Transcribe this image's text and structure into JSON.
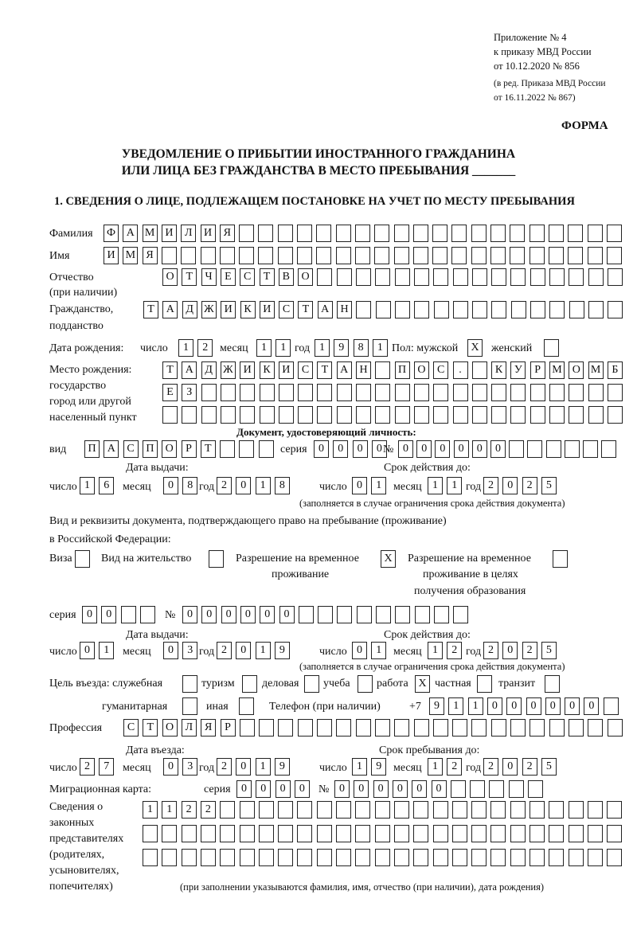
{
  "header": {
    "appendix": [
      "Приложение № 4",
      "к приказу МВД России",
      "от 10.12.2020 № 856"
    ],
    "revision": [
      "(в ред. Приказа МВД России",
      "от 16.11.2022 № 867)"
    ],
    "form_label": "ФОРМА",
    "title_line1": "УВЕДОМЛЕНИЕ О ПРИБЫТИИ ИНОСТРАННОГО ГРАЖДАНИНА",
    "title_line2": "ИЛИ ЛИЦА БЕЗ ГРАЖДАНСТВА В МЕСТО ПРЕБЫВАНИЯ _______",
    "section1": "1. СВЕДЕНИЯ О ЛИЦЕ, ПОДЛЕЖАЩЕМ ПОСТАНОВКЕ НА УЧЕТ ПО МЕСТУ ПРЕБЫВАНИЯ"
  },
  "person": {
    "surname": {
      "label": "Фамилия",
      "value": "ФАМИЛИЯ"
    },
    "name": {
      "label": "Имя",
      "value": "ИМЯ"
    },
    "patronymic": {
      "label1": "Отчество",
      "label2": "(при наличии)",
      "value": "ОТЧЕСТВО"
    },
    "citizenship": {
      "label1": "Гражданство,",
      "label2": "подданство",
      "value": "ТАДЖИКИСТАН"
    },
    "birth_date": {
      "label": "Дата рождения:",
      "day_label": "число",
      "day": "12",
      "month_label": "месяц",
      "month": "11",
      "year_label": "год",
      "year": "1981"
    },
    "sex": {
      "label": "Пол: мужской",
      "male": "X",
      "female_label": "женский",
      "female": ""
    },
    "birth_place": {
      "labels": [
        "Место рождения:",
        "государство",
        "город или другой",
        "населенный пункт"
      ],
      "rows": [
        "ТАДЖИКИСТАН ПОС. КУРМОМБ",
        "ЕЗ",
        ""
      ]
    }
  },
  "id_document": {
    "heading": "Документ, удостоверяющий личность:",
    "type_label": "вид",
    "type": "ПАСПОРТ",
    "series_label": "серия",
    "series": "0000",
    "number_label": "№",
    "number": "000000",
    "issue": {
      "heading": "Дата выдачи:",
      "day_label": "число",
      "day": "16",
      "month_label": "месяц",
      "month": "08",
      "year_label": "год",
      "year": "2018"
    },
    "valid": {
      "heading": "Срок действия до:",
      "day_label": "число",
      "day": "01",
      "month_label": "месяц",
      "month": "11",
      "year_label": "год",
      "year": "2025"
    },
    "note": "(заполняется в случае ограничения срока действия документа)"
  },
  "stay_document": {
    "heading1": "Вид и реквизиты документа, подтверждающего право на пребывание (проживание)",
    "heading2": "в Российской Федерации:",
    "visa_label": "Виза",
    "visa": "",
    "residence_label": "Вид на жительство",
    "residence": "",
    "temp_label1": "Разрешение на временное",
    "temp_label2": "проживание",
    "temp": "X",
    "edu_label1": "Разрешение на временное",
    "edu_label2": "проживание в целях",
    "edu_label3": "получения образования",
    "edu": "",
    "series_label": "серия",
    "series": "00",
    "number_label": "№",
    "number": "000000",
    "issue": {
      "heading": "Дата выдачи:",
      "day_label": "число",
      "day": "01",
      "month_label": "месяц",
      "month": "03",
      "year_label": "год",
      "year": "2019"
    },
    "valid": {
      "heading": "Срок действия до:",
      "day_label": "число",
      "day": "01",
      "month_label": "месяц",
      "month": "12",
      "year_label": "год",
      "year": "2025"
    },
    "note": "(заполняется в случае ограничения срока действия документа)"
  },
  "purpose": {
    "label": "Цель въезда: служебная",
    "official": "",
    "tourism_label": "туризм",
    "tourism": "",
    "business_label": "деловая",
    "business": "",
    "study_label": "учеба",
    "study": "",
    "work_label": "работа",
    "work": "X",
    "private_label": "частная",
    "private": "",
    "transit_label": "транзит",
    "transit": "",
    "humanitarian_label": "гуманитарная",
    "humanitarian": "",
    "other_label": "иная",
    "other": ""
  },
  "phone": {
    "label": "Телефон (при наличии)",
    "prefix": "+7",
    "value": "911000000"
  },
  "profession": {
    "label": "Профессия",
    "value": "СТОЛЯР"
  },
  "entry": {
    "heading": "Дата въезда:",
    "day_label": "число",
    "day": "27",
    "month_label": "месяц",
    "month": "03",
    "year_label": "год",
    "year": "2019"
  },
  "stay_until": {
    "heading": "Срок пребывания до:",
    "day_label": "число",
    "day": "19",
    "month_label": "месяц",
    "month": "12",
    "year_label": "год",
    "year": "2025"
  },
  "migration_card": {
    "label": "Миграционная карта:",
    "series_label": "серия",
    "series": "0000",
    "number_label": "№",
    "number": "000000"
  },
  "representatives": {
    "labels": [
      "Сведения о",
      "законных",
      "представителях",
      "(родителях,",
      "усыновителях,",
      "попечителях)"
    ],
    "rows": [
      "1122",
      "",
      ""
    ],
    "note": "(при заполнении указываются фамилия, имя, отчество (при наличии), дата рождения)"
  }
}
